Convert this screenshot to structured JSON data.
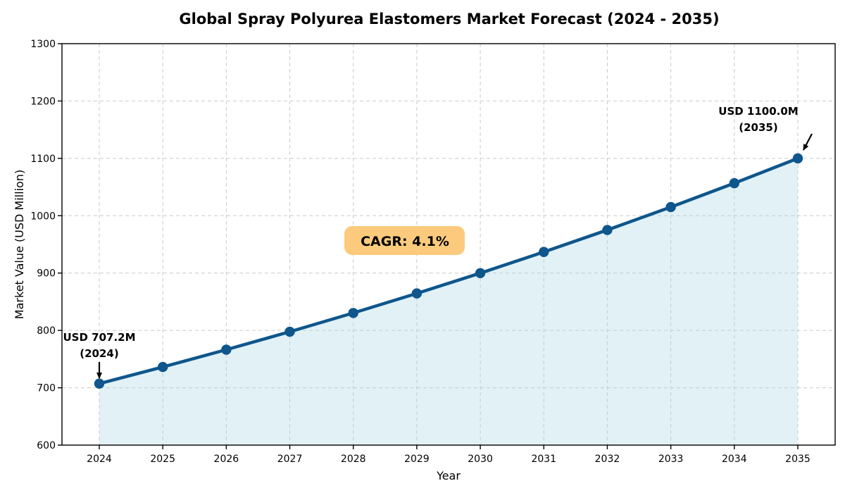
{
  "chart_data": {
    "type": "line",
    "title": "Global Spray Polyurea Elastomers Market Forecast (2024 - 2035)",
    "xlabel": "Year",
    "ylabel": "Market Value (USD Million)",
    "x": [
      2024,
      2025,
      2026,
      2027,
      2028,
      2029,
      2030,
      2031,
      2032,
      2033,
      2034,
      2035
    ],
    "series": [
      {
        "name": "Market Value (USD Million)",
        "values": [
          707.2,
          736.2,
          766.4,
          797.7,
          830.4,
          864.5,
          899.9,
          936.8,
          975.1,
          1015.1,
          1056.7,
          1100.0
        ]
      }
    ],
    "ylim": [
      600,
      1300
    ],
    "yticks": [
      600,
      700,
      800,
      900,
      1000,
      1100,
      1200,
      1300
    ],
    "grid": true,
    "legend": "none",
    "area_fill": true,
    "annotations": [
      {
        "line1": "USD 707.2M",
        "line2": "(2024)",
        "year": 2024,
        "value": 707.2
      },
      {
        "line1": "USD 1100.0M",
        "line2": "(2035)",
        "year": 2035,
        "value": 1100.0
      }
    ],
    "badge": {
      "label": "CAGR: 4.1%"
    },
    "colors": {
      "line": "#0e568c",
      "marker": "#0e568c",
      "fill": "#add8e6",
      "fill_opacity": "0.35",
      "badge_bg": "#fcca7d",
      "grid": "#c9c9c9",
      "text": "#000000"
    }
  }
}
